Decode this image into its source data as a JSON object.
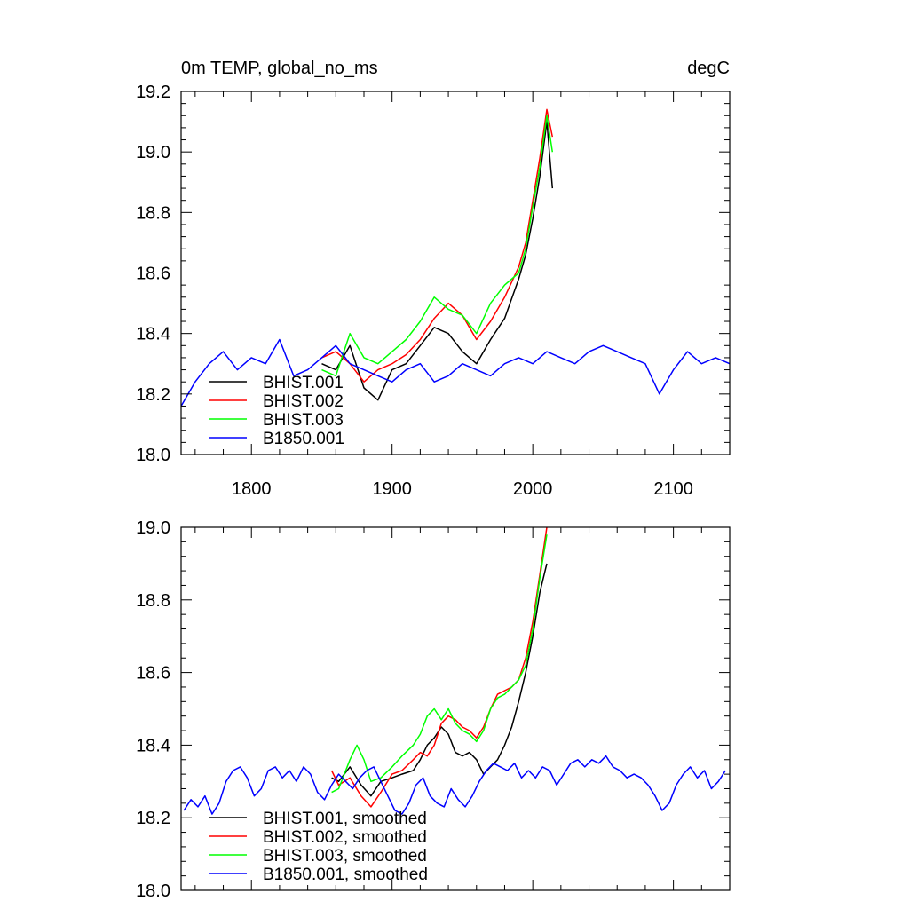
{
  "chart_data": [
    {
      "type": "line",
      "title_left": "0m TEMP, global_no_ms",
      "title_right": "degC",
      "xlabel": "",
      "ylabel": "",
      "xlim": [
        1750,
        2140
      ],
      "ylim": [
        18.0,
        19.2
      ],
      "xticks": [
        1800,
        1900,
        2000,
        2100
      ],
      "xtick_labels": [
        "1800",
        "1900",
        "2000",
        "2100"
      ],
      "yticks": [
        18.0,
        18.2,
        18.4,
        18.6,
        18.8,
        19.0,
        19.2
      ],
      "ytick_labels": [
        "18.0",
        "18.2",
        "18.4",
        "18.6",
        "18.8",
        "19.0",
        "19.2"
      ],
      "legend_position": "bottom-left",
      "grid": false,
      "series": [
        {
          "name": "BHIST.001",
          "color": "#000000",
          "x": [
            1850,
            1860,
            1870,
            1880,
            1890,
            1900,
            1910,
            1920,
            1930,
            1940,
            1950,
            1960,
            1970,
            1980,
            1990,
            1995,
            2000,
            2005,
            2010,
            2014
          ],
          "y": [
            18.3,
            18.28,
            18.36,
            18.22,
            18.18,
            18.28,
            18.3,
            18.36,
            18.42,
            18.4,
            18.34,
            18.3,
            18.38,
            18.45,
            18.58,
            18.66,
            18.78,
            18.92,
            19.1,
            18.88
          ]
        },
        {
          "name": "BHIST.002",
          "color": "#ff0000",
          "x": [
            1850,
            1860,
            1870,
            1880,
            1890,
            1900,
            1910,
            1920,
            1930,
            1940,
            1950,
            1960,
            1970,
            1980,
            1990,
            1995,
            2000,
            2005,
            2010,
            2014
          ],
          "y": [
            18.32,
            18.34,
            18.3,
            18.24,
            18.28,
            18.3,
            18.33,
            18.38,
            18.45,
            18.5,
            18.46,
            18.38,
            18.44,
            18.52,
            18.62,
            18.7,
            18.84,
            18.98,
            19.14,
            19.05
          ]
        },
        {
          "name": "BHIST.003",
          "color": "#00ff00",
          "x": [
            1850,
            1860,
            1870,
            1880,
            1890,
            1900,
            1910,
            1920,
            1930,
            1940,
            1950,
            1960,
            1970,
            1980,
            1990,
            1995,
            2000,
            2005,
            2010,
            2014
          ],
          "y": [
            18.28,
            18.26,
            18.4,
            18.32,
            18.3,
            18.34,
            18.38,
            18.44,
            18.52,
            18.48,
            18.46,
            18.4,
            18.5,
            18.56,
            18.6,
            18.68,
            18.82,
            18.95,
            19.12,
            19.0
          ]
        },
        {
          "name": "B1850.001",
          "color": "#0000ff",
          "x": [
            1750,
            1760,
            1770,
            1780,
            1790,
            1800,
            1810,
            1820,
            1830,
            1840,
            1850,
            1860,
            1870,
            1880,
            1890,
            1900,
            1910,
            1920,
            1930,
            1940,
            1950,
            1960,
            1970,
            1980,
            1990,
            2000,
            2010,
            2020,
            2030,
            2040,
            2050,
            2060,
            2070,
            2080,
            2090,
            2100,
            2110,
            2120,
            2130,
            2140
          ],
          "y": [
            18.16,
            18.24,
            18.3,
            18.34,
            18.28,
            18.32,
            18.3,
            18.38,
            18.26,
            18.28,
            18.32,
            18.36,
            18.3,
            18.28,
            18.26,
            18.24,
            18.28,
            18.3,
            18.24,
            18.26,
            18.3,
            18.28,
            18.26,
            18.3,
            18.32,
            18.3,
            18.34,
            18.32,
            18.3,
            18.34,
            18.36,
            18.34,
            18.32,
            18.3,
            18.2,
            18.28,
            18.34,
            18.3,
            18.32,
            18.3
          ]
        }
      ]
    },
    {
      "type": "line",
      "xlabel": "",
      "ylabel": "",
      "xlim": [
        1750,
        2140
      ],
      "ylim": [
        18.0,
        19.0
      ],
      "xticks": [
        1800,
        1900,
        2000,
        2100
      ],
      "yticks": [
        18.0,
        18.2,
        18.4,
        18.6,
        18.8,
        19.0
      ],
      "ytick_labels": [
        "18.0",
        "18.2",
        "18.4",
        "18.6",
        "18.8",
        "19.0"
      ],
      "legend_position": "bottom-left",
      "grid": false,
      "series": [
        {
          "name": "BHIST.001, smoothed",
          "color": "#000000",
          "x": [
            1857,
            1862,
            1870,
            1878,
            1885,
            1892,
            1900,
            1907,
            1915,
            1920,
            1925,
            1930,
            1935,
            1940,
            1945,
            1950,
            1955,
            1960,
            1965,
            1970,
            1975,
            1980,
            1985,
            1990,
            1995,
            2000,
            2005,
            2010
          ],
          "y": [
            18.31,
            18.3,
            18.34,
            18.29,
            18.26,
            18.3,
            18.31,
            18.32,
            18.33,
            18.36,
            18.4,
            18.42,
            18.45,
            18.43,
            18.38,
            18.37,
            18.38,
            18.36,
            18.32,
            18.34,
            18.36,
            18.4,
            18.45,
            18.52,
            18.6,
            18.7,
            18.82,
            18.9
          ]
        },
        {
          "name": "BHIST.002, smoothed",
          "color": "#ff0000",
          "x": [
            1857,
            1862,
            1870,
            1878,
            1885,
            1892,
            1900,
            1907,
            1915,
            1920,
            1925,
            1930,
            1935,
            1940,
            1945,
            1950,
            1955,
            1960,
            1965,
            1970,
            1975,
            1980,
            1985,
            1990,
            1995,
            2000,
            2005,
            2010
          ],
          "y": [
            18.33,
            18.29,
            18.31,
            18.26,
            18.23,
            18.27,
            18.32,
            18.33,
            18.36,
            18.38,
            18.37,
            18.4,
            18.46,
            18.48,
            18.47,
            18.45,
            18.44,
            18.42,
            18.45,
            18.5,
            18.54,
            18.55,
            18.56,
            18.58,
            18.64,
            18.74,
            18.87,
            19.0
          ]
        },
        {
          "name": "BHIST.003, smoothed",
          "color": "#00ff00",
          "x": [
            1857,
            1862,
            1870,
            1875,
            1880,
            1885,
            1892,
            1900,
            1907,
            1915,
            1920,
            1925,
            1930,
            1935,
            1940,
            1945,
            1950,
            1955,
            1960,
            1965,
            1970,
            1975,
            1980,
            1985,
            1990,
            1995,
            2000,
            2005,
            2010
          ],
          "y": [
            18.27,
            18.28,
            18.36,
            18.4,
            18.36,
            18.3,
            18.31,
            18.34,
            18.37,
            18.4,
            18.43,
            18.48,
            18.5,
            18.47,
            18.5,
            18.46,
            18.44,
            18.43,
            18.41,
            18.44,
            18.5,
            18.53,
            18.54,
            18.56,
            18.58,
            18.62,
            18.72,
            18.86,
            18.98
          ]
        },
        {
          "name": "B1850.001, smoothed",
          "color": "#0000ff",
          "x": [
            1752,
            1757,
            1762,
            1767,
            1772,
            1777,
            1782,
            1787,
            1792,
            1797,
            1802,
            1807,
            1812,
            1817,
            1822,
            1827,
            1832,
            1837,
            1842,
            1847,
            1852,
            1857,
            1862,
            1867,
            1872,
            1877,
            1882,
            1887,
            1892,
            1897,
            1902,
            1907,
            1912,
            1917,
            1922,
            1927,
            1932,
            1937,
            1942,
            1947,
            1952,
            1957,
            1962,
            1967,
            1972,
            1977,
            1982,
            1987,
            1992,
            1997,
            2002,
            2007,
            2012,
            2017,
            2022,
            2027,
            2032,
            2037,
            2042,
            2047,
            2052,
            2057,
            2062,
            2067,
            2072,
            2077,
            2082,
            2087,
            2092,
            2097,
            2102,
            2107,
            2112,
            2117,
            2122,
            2127,
            2132,
            2137
          ],
          "y": [
            18.22,
            18.25,
            18.23,
            18.26,
            18.21,
            18.24,
            18.3,
            18.33,
            18.34,
            18.31,
            18.26,
            18.28,
            18.33,
            18.34,
            18.31,
            18.33,
            18.3,
            18.34,
            18.32,
            18.27,
            18.25,
            18.29,
            18.32,
            18.3,
            18.28,
            18.31,
            18.33,
            18.34,
            18.3,
            18.26,
            18.22,
            18.21,
            18.24,
            18.29,
            18.31,
            18.26,
            18.24,
            18.23,
            18.28,
            18.25,
            18.23,
            18.26,
            18.3,
            18.33,
            18.35,
            18.34,
            18.33,
            18.35,
            18.31,
            18.33,
            18.31,
            18.34,
            18.33,
            18.29,
            18.32,
            18.35,
            18.36,
            18.34,
            18.36,
            18.35,
            18.37,
            18.34,
            18.33,
            18.31,
            18.32,
            18.31,
            18.29,
            18.26,
            18.22,
            18.24,
            18.29,
            18.32,
            18.34,
            18.31,
            18.33,
            18.28,
            18.3,
            18.33
          ]
        }
      ]
    }
  ]
}
